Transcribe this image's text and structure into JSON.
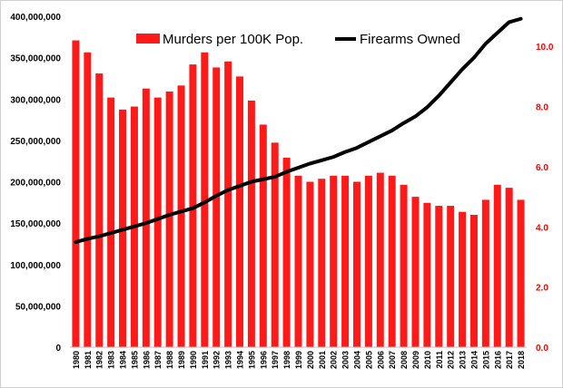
{
  "chart_data": {
    "type": "bar",
    "categories": [
      "1980",
      "1981",
      "1982",
      "1983",
      "1984",
      "1985",
      "1986",
      "1987",
      "1988",
      "1989",
      "1990",
      "1991",
      "1992",
      "1993",
      "1994",
      "1995",
      "1996",
      "1997",
      "1998",
      "1999",
      "2000",
      "2001",
      "2002",
      "2003",
      "2004",
      "2005",
      "2006",
      "2007",
      "2008",
      "2009",
      "2010",
      "2011",
      "2012",
      "2013",
      "2014",
      "2015",
      "2016",
      "2017",
      "2018"
    ],
    "series": [
      {
        "name": "Murders per 100K Pop.",
        "type": "bar",
        "axis": "right",
        "color": "#ff1a1a",
        "values": [
          10.2,
          9.8,
          9.1,
          8.3,
          7.9,
          8.0,
          8.6,
          8.3,
          8.5,
          8.7,
          9.4,
          9.8,
          9.3,
          9.5,
          9.0,
          8.2,
          7.4,
          6.8,
          6.3,
          5.7,
          5.5,
          5.6,
          5.7,
          5.7,
          5.5,
          5.7,
          5.8,
          5.7,
          5.4,
          5.0,
          4.8,
          4.7,
          4.7,
          4.5,
          4.4,
          4.9,
          5.4,
          5.3,
          4.9
        ]
      },
      {
        "name": "Firearms Owned",
        "type": "line",
        "axis": "left",
        "color": "#000000",
        "values": [
          127000000,
          131000000,
          134000000,
          138000000,
          142000000,
          146000000,
          150000000,
          155000000,
          160000000,
          164000000,
          168000000,
          175000000,
          183000000,
          190000000,
          195000000,
          200000000,
          203000000,
          206000000,
          212000000,
          217000000,
          222000000,
          226000000,
          230000000,
          236000000,
          241000000,
          248000000,
          255000000,
          262000000,
          271000000,
          279000000,
          290000000,
          304000000,
          320000000,
          336000000,
          350000000,
          367000000,
          380000000,
          393000000,
          397000000
        ]
      }
    ],
    "y_left": {
      "min": 0,
      "max": 400000000,
      "ticks": [
        "0",
        "50,000,000",
        "100,000,000",
        "150,000,000",
        "200,000,000",
        "250,000,000",
        "300,000,000",
        "350,000,000",
        "400,000,000"
      ]
    },
    "y_right": {
      "min": 0,
      "max": 11,
      "color": "#ff0000",
      "ticks": [
        {
          "value": 0,
          "label": "0.0"
        },
        {
          "value": 2,
          "label": "2.0"
        },
        {
          "value": 4,
          "label": "4.0"
        },
        {
          "value": 6,
          "label": "6.0"
        },
        {
          "value": 8,
          "label": "8.0"
        },
        {
          "value": 10,
          "label": "10.0"
        }
      ]
    },
    "legend": {
      "placement": "top",
      "items": [
        {
          "label": "Murders per 100K Pop.",
          "marker": "bar",
          "color": "#ff1a1a"
        },
        {
          "label": "Firearms Owned",
          "marker": "line",
          "color": "#000000"
        }
      ]
    },
    "grid": false
  }
}
